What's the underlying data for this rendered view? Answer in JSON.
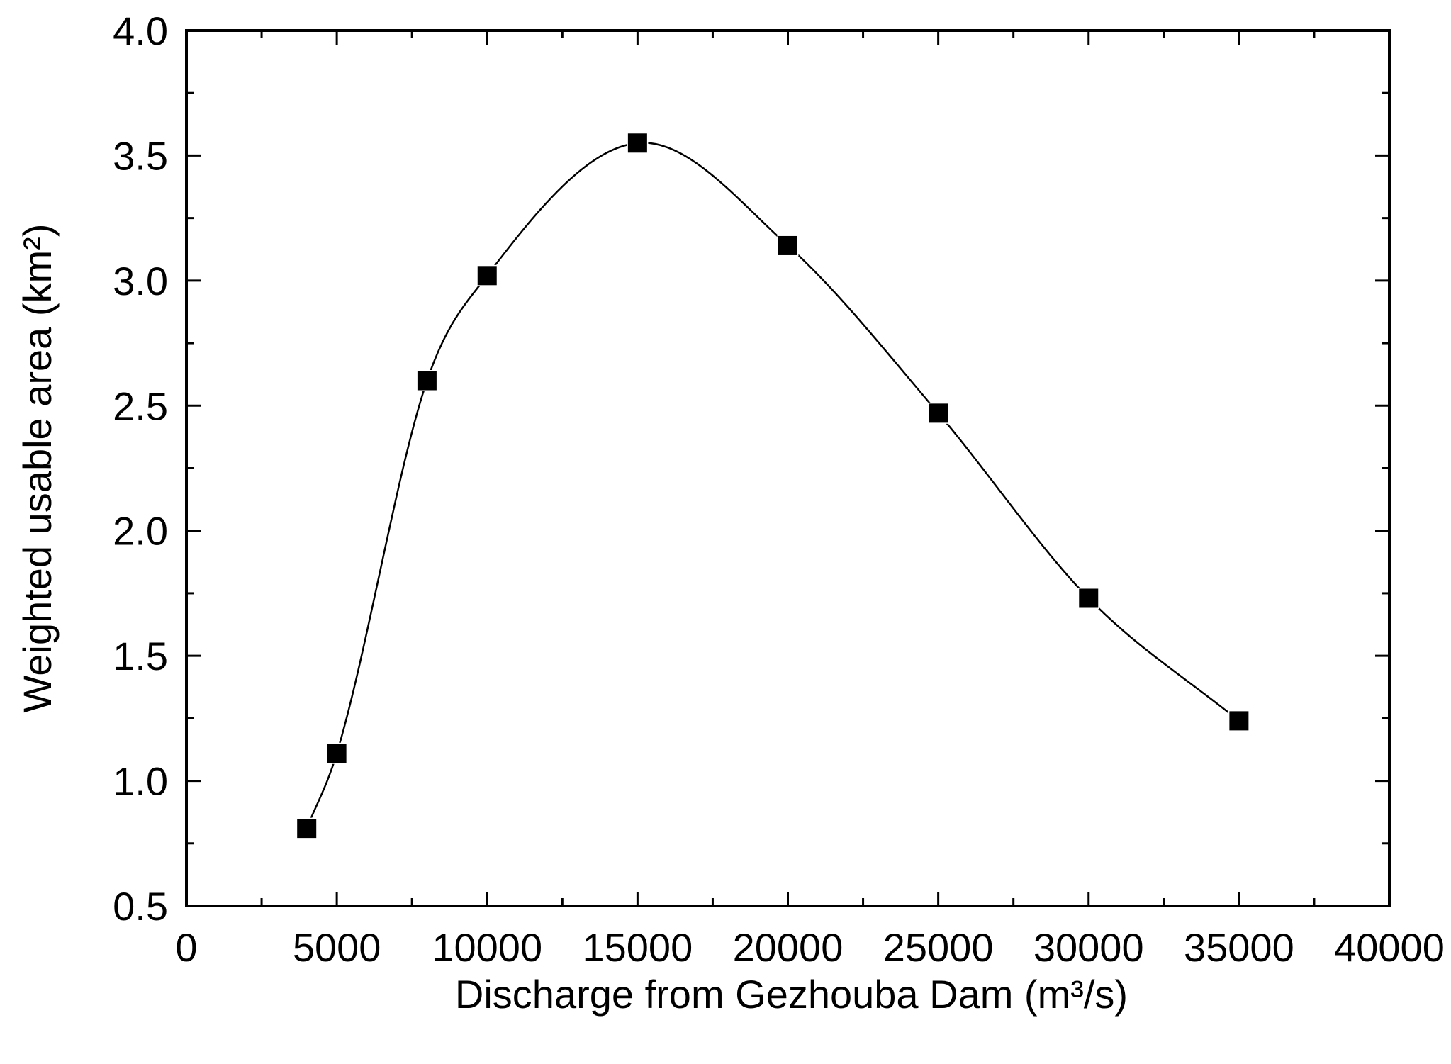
{
  "chart_data": {
    "type": "line",
    "title": "",
    "xlabel": "Discharge from Gezhouba Dam (m³/s)",
    "ylabel": "Weighted usable area (km²)",
    "xlim": [
      0,
      40000
    ],
    "ylim": [
      0.5,
      4.0
    ],
    "xticks": [
      0,
      5000,
      10000,
      15000,
      20000,
      25000,
      30000,
      35000,
      40000
    ],
    "yticks": [
      0.5,
      1.0,
      1.5,
      2.0,
      2.5,
      3.0,
      3.5,
      4.0
    ],
    "xtick_labels": [
      "0",
      "5000",
      "10000",
      "15000",
      "20000",
      "25000",
      "30000",
      "35000",
      "40000"
    ],
    "ytick_labels": [
      "0.5",
      "1.0",
      "1.5",
      "2.0",
      "2.5",
      "3.0",
      "3.5",
      "4.0"
    ],
    "grid": false,
    "legend": "none",
    "series": [
      {
        "marker": "square",
        "line": "smooth",
        "color": "#000000",
        "x": [
          4000,
          5000,
          8000,
          10000,
          15000,
          20000,
          25000,
          30000,
          35000
        ],
        "y": [
          0.81,
          1.11,
          2.6,
          3.02,
          3.55,
          3.14,
          2.47,
          1.73,
          1.24
        ]
      }
    ]
  }
}
